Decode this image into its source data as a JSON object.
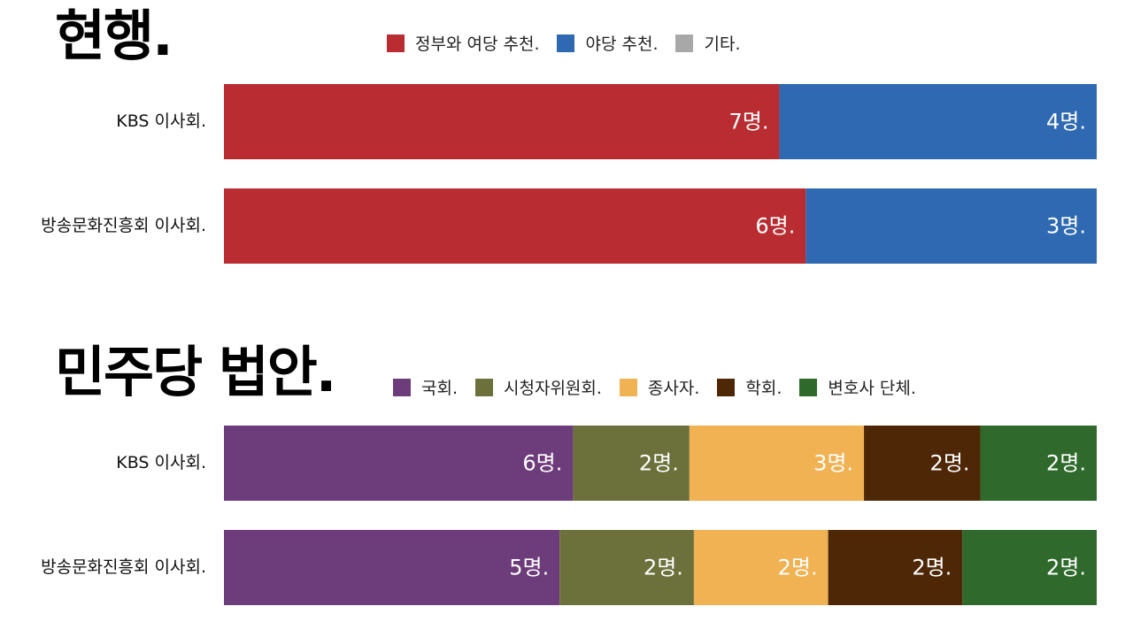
{
  "chart_data": [
    {
      "type": "bar",
      "orientation": "horizontal",
      "stacked": true,
      "title": "현행.",
      "categories": [
        "KBS 이사회.",
        "방송문화진흥회 이사회."
      ],
      "legend": [
        "정부와 여당 추천.",
        "야당 추천.",
        "기타."
      ],
      "legend_colors": [
        "#b92c31",
        "#2e69b1",
        "#a8a8a8"
      ],
      "legend_placement": "top",
      "grid": false,
      "series": [
        {
          "name": "정부와 여당 추천.",
          "color": "#b92c31",
          "values": [
            7,
            6
          ],
          "labels": [
            "7명.",
            "6명."
          ]
        },
        {
          "name": "야당 추천.",
          "color": "#2e69b1",
          "values": [
            4,
            3
          ],
          "labels": [
            "4명.",
            "3명."
          ]
        }
      ]
    },
    {
      "type": "bar",
      "orientation": "horizontal",
      "stacked": true,
      "title": "민주당 법안.",
      "categories": [
        "KBS 이사회.",
        "방송문화진흥회 이사회."
      ],
      "legend": [
        "국회.",
        "시청자위원회.",
        "종사자.",
        "학회.",
        "변호사 단체."
      ],
      "legend_colors": [
        "#6d3c7a",
        "#6c713c",
        "#f0b252",
        "#4e2707",
        "#2f6a2c"
      ],
      "legend_placement": "top",
      "grid": false,
      "series": [
        {
          "name": "국회.",
          "color": "#6d3c7a",
          "values": [
            6,
            5
          ],
          "labels": [
            "6명.",
            "5명."
          ]
        },
        {
          "name": "시청자위원회.",
          "color": "#6c713c",
          "values": [
            2,
            2
          ],
          "labels": [
            "2명.",
            "2명."
          ]
        },
        {
          "name": "종사자.",
          "color": "#f0b252",
          "values": [
            3,
            2
          ],
          "labels": [
            "3명.",
            "2명."
          ]
        },
        {
          "name": "학회.",
          "color": "#4e2707",
          "values": [
            2,
            2
          ],
          "labels": [
            "2명.",
            "2명."
          ]
        },
        {
          "name": "변호사 단체.",
          "color": "#2f6a2c",
          "values": [
            2,
            2
          ],
          "labels": [
            "2명.",
            "2명."
          ]
        }
      ]
    }
  ]
}
